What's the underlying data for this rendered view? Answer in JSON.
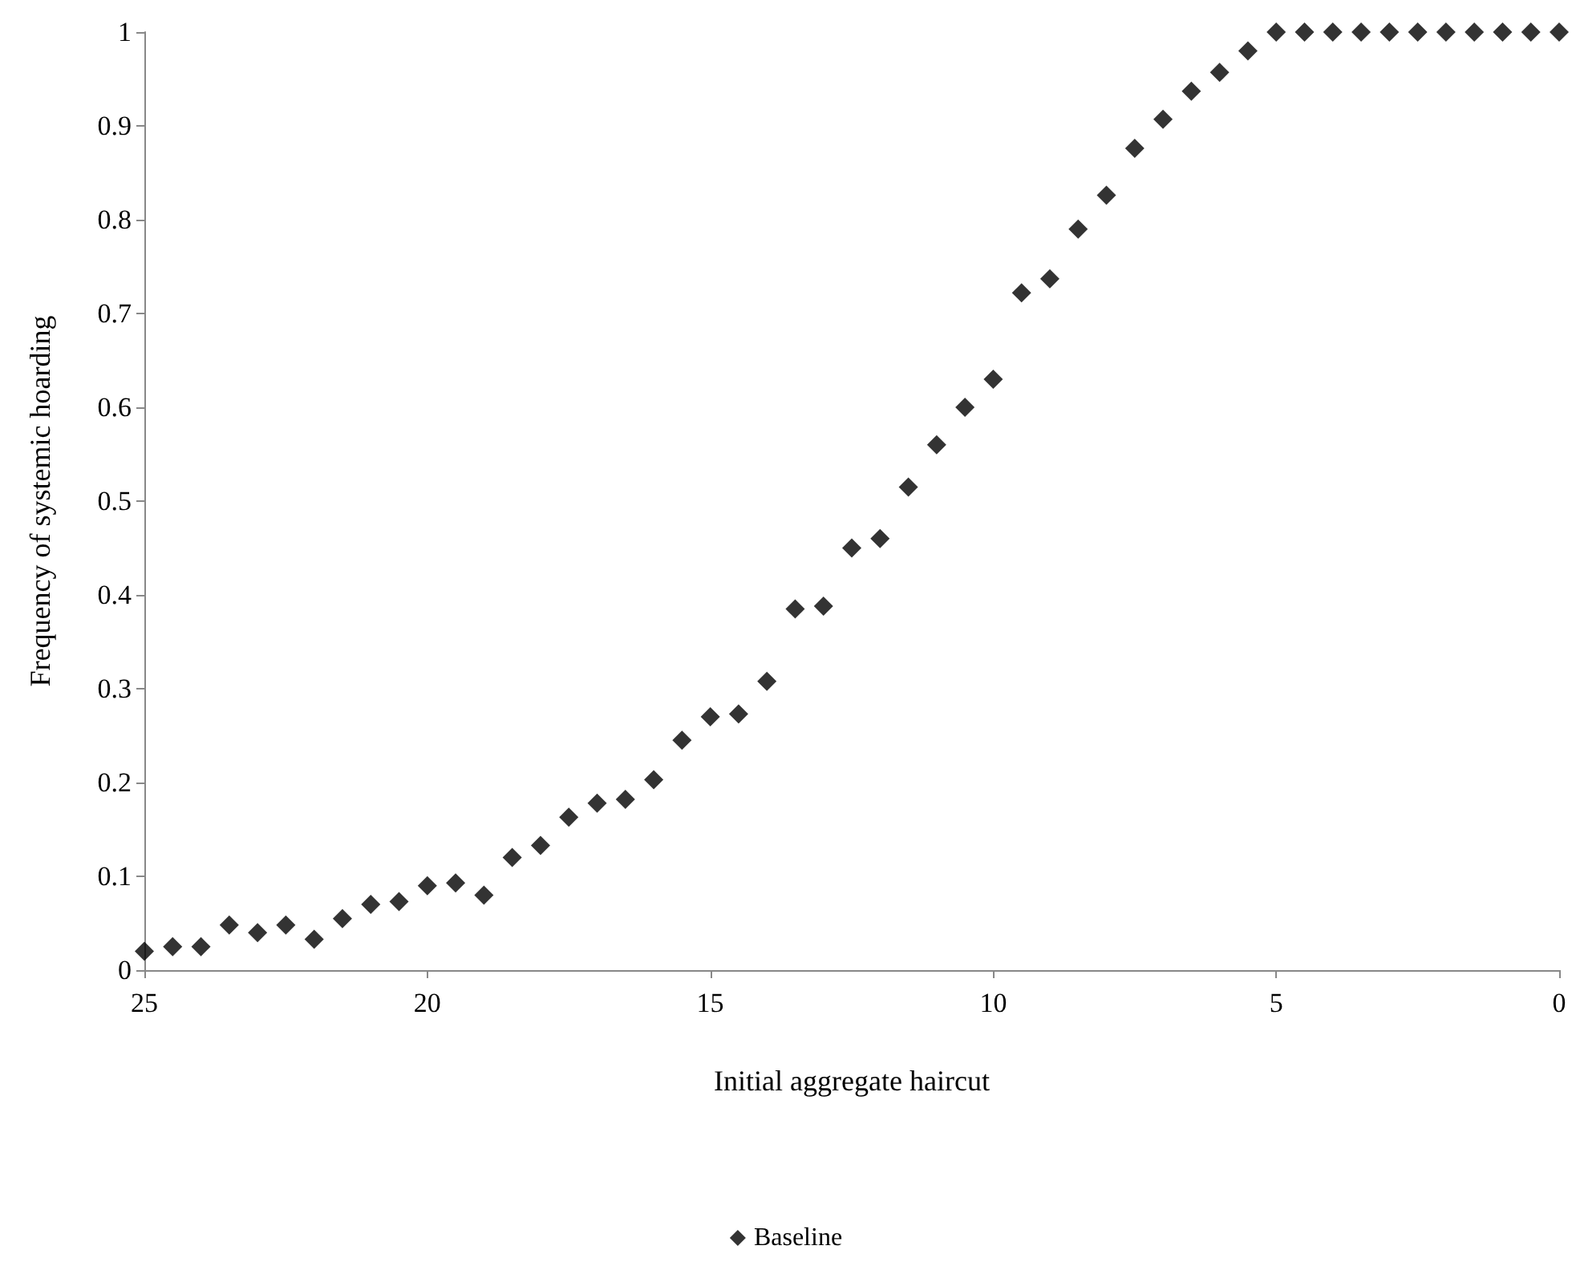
{
  "chart_data": {
    "type": "scatter",
    "xlabel": "Initial aggregate haircut",
    "ylabel": "Frequency of systemic hoarding",
    "x": [
      25,
      24.5,
      24,
      23.5,
      23,
      22.5,
      22,
      21.5,
      21,
      20.5,
      20,
      19.5,
      19,
      18.5,
      18,
      17.5,
      17,
      16.5,
      16,
      15.5,
      15,
      14.5,
      14,
      13.5,
      13,
      12.5,
      12,
      11.5,
      11,
      10.5,
      10,
      9.5,
      9,
      8.5,
      8,
      7.5,
      7,
      6.5,
      6,
      5.5,
      5,
      4.5,
      4,
      3.5,
      3,
      2.5,
      2,
      1.5,
      1,
      0.5,
      0
    ],
    "series": [
      {
        "name": "Baseline",
        "color": "#000000",
        "values": [
          0.02,
          0.025,
          0.025,
          0.048,
          0.04,
          0.048,
          0.033,
          0.055,
          0.07,
          0.073,
          0.09,
          0.093,
          0.08,
          0.12,
          0.133,
          0.163,
          0.178,
          0.182,
          0.203,
          0.245,
          0.27,
          0.273,
          0.308,
          0.385,
          0.388,
          0.45,
          0.46,
          0.515,
          0.56,
          0.6,
          0.63,
          0.722,
          0.737,
          0.79,
          0.826,
          0.876,
          0.907,
          0.937,
          0.957,
          0.98,
          1,
          1,
          1,
          1,
          1,
          1,
          1,
          1,
          1,
          1,
          1
        ]
      }
    ],
    "xlim": [
      25,
      0
    ],
    "xticks": [
      25,
      20,
      15,
      10,
      5,
      0
    ],
    "ylim": [
      0,
      1
    ],
    "yticks": [
      0,
      0.1,
      0.2,
      0.3,
      0.4,
      0.5,
      0.6,
      0.7,
      0.8,
      0.9,
      1
    ],
    "marker": "diamond",
    "grid": false,
    "legend": "bottom"
  }
}
